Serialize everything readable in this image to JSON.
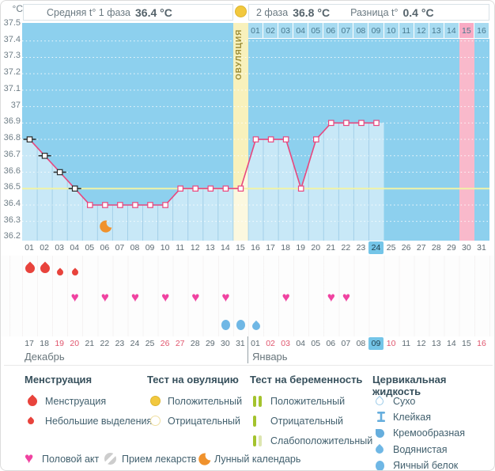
{
  "header": {
    "unit": "°C",
    "phase1_label": "Средняя t° 1 фаза",
    "phase1_value": "36.4 °C",
    "phase2_label": "2 фаза",
    "phase2_value": "36.8 °C",
    "diff_label": "Разница t°",
    "diff_value": "0.4 °C"
  },
  "chart_data": {
    "type": "line",
    "ylabel": "°C",
    "ylim": [
      36.2,
      37.5
    ],
    "y_ticks": [
      "37.5",
      "37.4",
      "37.3",
      "37.2",
      "37.1",
      "37",
      "36.9",
      "36.8",
      "36.7",
      "36.6",
      "36.5",
      "36.4",
      "36.3",
      "36.2"
    ],
    "x_day_labels": [
      "01",
      "02",
      "03",
      "04",
      "05",
      "06",
      "07",
      "08",
      "09",
      "10",
      "11",
      "12",
      "13",
      "14",
      "15",
      "16",
      "17",
      "18",
      "19",
      "20",
      "21",
      "22",
      "23",
      "24",
      "25",
      "26",
      "27",
      "28",
      "29",
      "30",
      "31"
    ],
    "series": [
      {
        "name": "basal-temperature",
        "x": [
          1,
          2,
          3,
          4,
          5,
          6,
          7,
          8,
          9,
          10,
          11,
          12,
          13,
          14,
          15,
          16,
          17,
          18,
          19,
          20,
          21,
          22,
          23,
          24
        ],
        "values": [
          36.8,
          36.7,
          36.6,
          36.5,
          36.4,
          36.4,
          36.4,
          36.4,
          36.4,
          36.4,
          36.5,
          36.5,
          36.5,
          36.5,
          36.5,
          36.8,
          36.8,
          36.8,
          36.5,
          36.8,
          36.9,
          36.9,
          36.9,
          36.9
        ]
      }
    ],
    "excluded_marker_days": [
      1,
      2,
      3,
      4
    ],
    "coverline": 36.5,
    "ovulation": {
      "day": 15,
      "label": "ОВУЛЯЦИЯ"
    },
    "expected_period_day": 30,
    "current_day": 24,
    "moon_day": 6,
    "dpo_row": {
      "start_day": 16,
      "labels": [
        "01",
        "02",
        "03",
        "04",
        "05",
        "06",
        "07",
        "08",
        "09",
        "10",
        "11",
        "12",
        "13",
        "14",
        "15",
        "16"
      ],
      "highlight_label": "15"
    },
    "grid": "dotted-white",
    "legend_position": "bottom"
  },
  "events": {
    "menstruation": [
      {
        "day": 1,
        "intensity": "normal"
      },
      {
        "day": 2,
        "intensity": "normal"
      },
      {
        "day": 3,
        "intensity": "light"
      },
      {
        "day": 4,
        "intensity": "light"
      }
    ],
    "intercourse_days": [
      4,
      6,
      8,
      10,
      12,
      14,
      18,
      21,
      22
    ],
    "cervical_fluid": [
      {
        "day": 14,
        "type": "eggwhite"
      },
      {
        "day": 15,
        "type": "eggwhite"
      },
      {
        "day": 16,
        "type": "watery"
      }
    ]
  },
  "calendar": {
    "months": [
      {
        "name": "Декабрь",
        "start_day": 1,
        "dates": [
          "17",
          "18",
          "19",
          "20",
          "21",
          "22",
          "23",
          "24",
          "25",
          "26",
          "27",
          "28",
          "29",
          "30",
          "31"
        ],
        "weekend_dates": [
          "19",
          "20",
          "26",
          "27"
        ]
      },
      {
        "name": "Январь",
        "start_day": 16,
        "dates": [
          "01",
          "02",
          "03",
          "04",
          "05",
          "06",
          "07",
          "08",
          "09",
          "10",
          "11",
          "12",
          "13",
          "14",
          "15",
          "16"
        ],
        "weekend_dates": [
          "02",
          "03",
          "10",
          "16"
        ],
        "today_date": "09"
      }
    ]
  },
  "legend": {
    "sections": [
      {
        "title": "Менструация",
        "items": [
          {
            "icon": "drop-red",
            "label": "Менструация"
          },
          {
            "icon": "drop-red-small",
            "label": "Небольшие выделения"
          }
        ]
      },
      {
        "title": "Тест на овуляцию",
        "items": [
          {
            "icon": "circle-yellow",
            "label": "Положительный"
          },
          {
            "icon": "circle-yellow-outline",
            "label": "Отрицательный"
          }
        ]
      },
      {
        "title": "Тест на беременность",
        "items": [
          {
            "icon": "bars-two-green",
            "label": "Положительный"
          },
          {
            "icon": "bar-one-green",
            "label": "Отрицательный"
          },
          {
            "icon": "bars-weak-green",
            "label": "Слабоположительный"
          }
        ]
      },
      {
        "title": "Цервикальная жидкость",
        "items": [
          {
            "icon": "drop-outline",
            "label": "Сухо"
          },
          {
            "icon": "sticky",
            "label": "Клейкая"
          },
          {
            "icon": "creamy",
            "label": "Кремообразная"
          },
          {
            "icon": "drop-blue",
            "label": "Водянистая"
          },
          {
            "icon": "eggwhite",
            "label": "Яичный белок"
          }
        ]
      }
    ],
    "footer_items": [
      {
        "icon": "heart",
        "label": "Половой акт"
      },
      {
        "icon": "pill",
        "label": "Прием лекарств"
      },
      {
        "icon": "moon",
        "label": "Лунный календарь"
      }
    ]
  },
  "colors": {
    "chart_blue": "#8dd0ee",
    "fill_overlay": "rgba(255,255,255,0.52)",
    "line_pink": "#e8477e",
    "coverline_yellow": "#f1f3a6",
    "ovulation_band": "#f8f1bc",
    "period_band": "#f9b9cb",
    "today_highlight": "#74c5e8",
    "weekend_red": "#e0566e",
    "menstruation_red": "#e8433c",
    "heart_pink": "#f043a1",
    "fluid_blue": "#6fb7e5",
    "test_yellow": "#f2c83e",
    "pregnancy_green": "#a4c32d",
    "moon_orange": "#f0922d"
  }
}
